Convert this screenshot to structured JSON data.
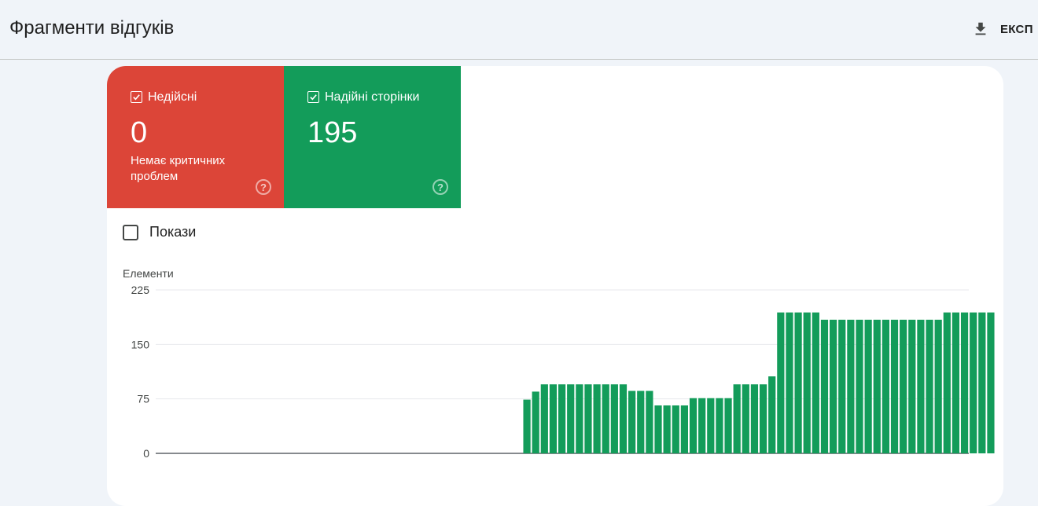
{
  "header": {
    "title": "Фрагменти відгуків",
    "export_label": "ЕКСП"
  },
  "tiles": [
    {
      "label": "Недійсні",
      "value": "0",
      "sub": "Немає критичних проблем",
      "color": "#dc4538"
    },
    {
      "label": "Надійні сторінки",
      "value": "195",
      "sub": "",
      "color": "#139c5a"
    }
  ],
  "show_toggle": {
    "label": "Покази",
    "checked": false
  },
  "chart_data": {
    "type": "bar",
    "ylabel": "Елементи",
    "ylim": [
      0,
      225
    ],
    "yticks": [
      0,
      75,
      150,
      225
    ],
    "bar_color": "#139c5a",
    "series": [
      {
        "values": [
          0,
          0,
          0,
          0,
          0,
          0,
          0,
          0,
          0,
          0,
          0,
          0,
          0,
          0,
          0,
          0,
          0,
          0,
          0,
          0,
          0,
          0,
          0,
          0,
          0,
          0,
          0,
          0,
          0,
          0,
          0,
          0,
          0,
          0,
          0,
          0,
          0,
          0,
          0,
          0,
          0,
          0,
          74,
          85,
          95,
          95,
          95,
          95,
          95,
          95,
          95,
          95,
          95,
          95,
          86,
          86,
          86,
          66,
          66,
          66,
          66,
          76,
          76,
          76,
          76,
          76,
          95,
          95,
          95,
          95,
          106,
          194,
          194,
          194,
          194,
          194,
          184,
          184,
          184,
          184,
          184,
          184,
          184,
          184,
          184,
          184,
          184,
          184,
          184,
          184,
          194,
          194,
          194,
          194,
          194,
          194
        ]
      }
    ]
  }
}
